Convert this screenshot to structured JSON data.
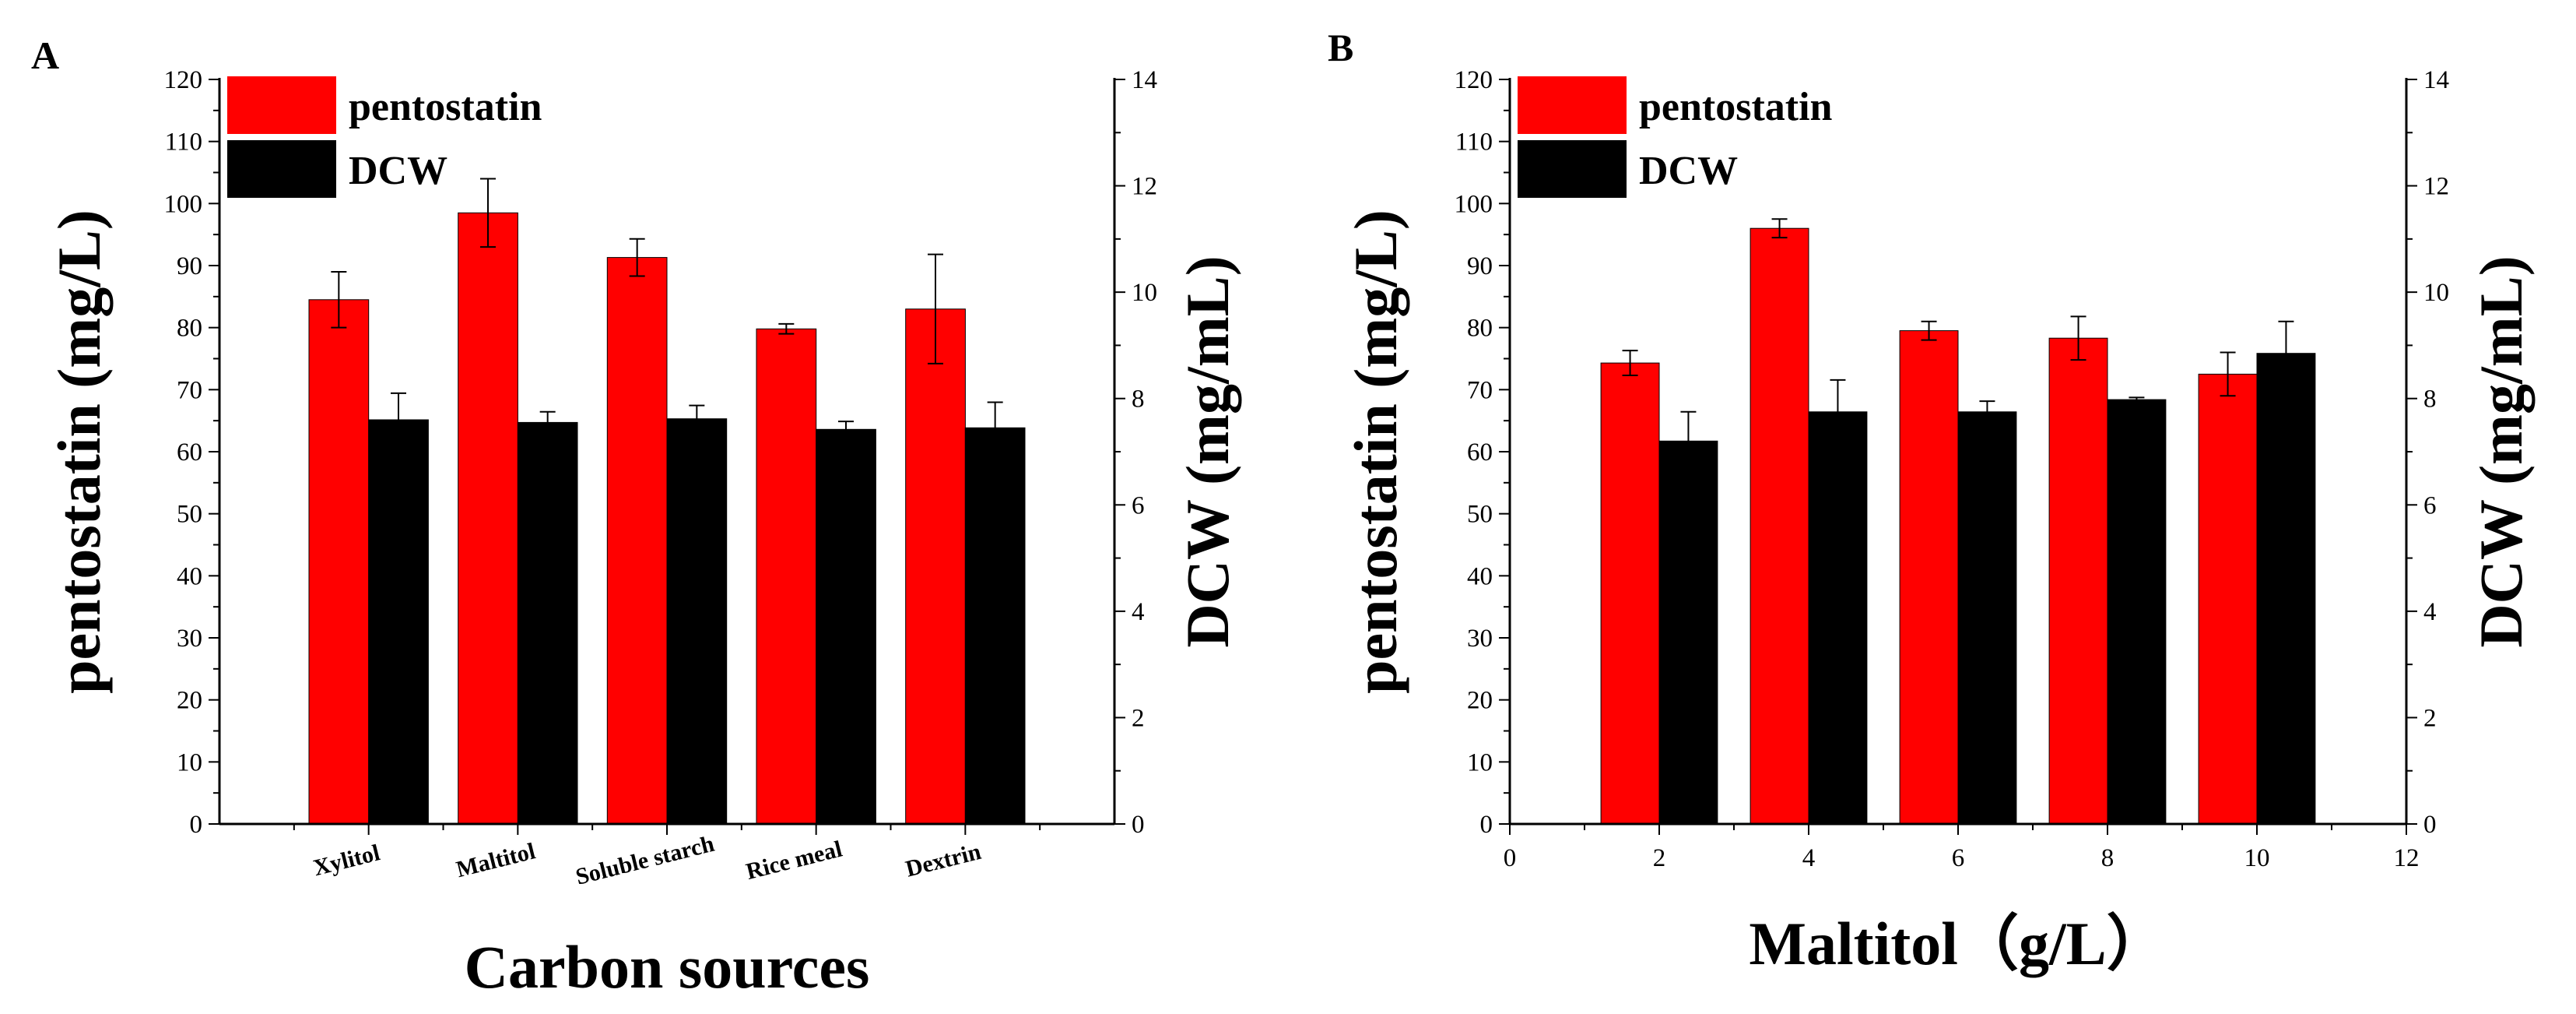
{
  "chart_data": [
    {
      "type": "bar",
      "panel_label": "A",
      "xlabel": "Carbon sources",
      "ylabel_left": "pentostatin (mg/L)",
      "ylabel_right": "DCW (mg/mL)",
      "ylim_left": [
        0,
        120
      ],
      "ylim_right": [
        0,
        14
      ],
      "yticks_left": [
        "0",
        "10",
        "20",
        "30",
        "40",
        "50",
        "60",
        "70",
        "80",
        "90",
        "100",
        "110",
        "120"
      ],
      "yticks_right": [
        "0",
        "2",
        "4",
        "6",
        "8",
        "10",
        "12",
        "14"
      ],
      "categories": [
        "Xylitol",
        "Maltitol",
        "Soluble starch",
        "Rice meal",
        "Dextrin"
      ],
      "series": [
        {
          "name": "pentostatin",
          "axis": "left",
          "color": "#ff0000",
          "values": [
            84.5,
            98.5,
            91.3,
            79.8,
            83.0
          ],
          "errors": [
            4.5,
            5.5,
            3.0,
            0.8,
            8.8
          ]
        },
        {
          "name": "DCW",
          "axis": "right",
          "color": "#000000",
          "values": [
            7.6,
            7.55,
            7.62,
            7.42,
            7.45
          ],
          "errors": [
            0.5,
            0.2,
            0.25,
            0.15,
            0.48
          ]
        }
      ],
      "legend": [
        "pentostatin",
        "DCW"
      ],
      "legend_position": "top-left"
    },
    {
      "type": "bar",
      "panel_label": "B",
      "xlabel": "Maltitol（g/L）",
      "ylabel_left": "pentostatin (mg/L)",
      "ylabel_right": "DCW (mg/mL)",
      "ylim_left": [
        0,
        120
      ],
      "ylim_right": [
        0,
        14
      ],
      "xlim": [
        0,
        12
      ],
      "xticks": [
        "0",
        "2",
        "4",
        "6",
        "8",
        "10",
        "12"
      ],
      "yticks_left": [
        "0",
        "10",
        "20",
        "30",
        "40",
        "50",
        "60",
        "70",
        "80",
        "90",
        "100",
        "110",
        "120"
      ],
      "yticks_right": [
        "0",
        "2",
        "4",
        "6",
        "8",
        "10",
        "12",
        "14"
      ],
      "x": [
        2,
        4,
        6,
        8,
        10
      ],
      "series": [
        {
          "name": "pentostatin",
          "axis": "left",
          "color": "#ff0000",
          "values": [
            74.3,
            96.0,
            79.5,
            78.3,
            72.5
          ],
          "errors": [
            2.0,
            1.5,
            1.5,
            3.5,
            3.5
          ]
        },
        {
          "name": "DCW",
          "axis": "right",
          "color": "#000000",
          "values": [
            7.2,
            7.75,
            7.75,
            7.98,
            8.85
          ],
          "errors": [
            0.55,
            0.6,
            0.2,
            0.04,
            0.6
          ]
        }
      ],
      "legend": [
        "pentostatin",
        "DCW"
      ],
      "legend_position": "top-left"
    }
  ]
}
